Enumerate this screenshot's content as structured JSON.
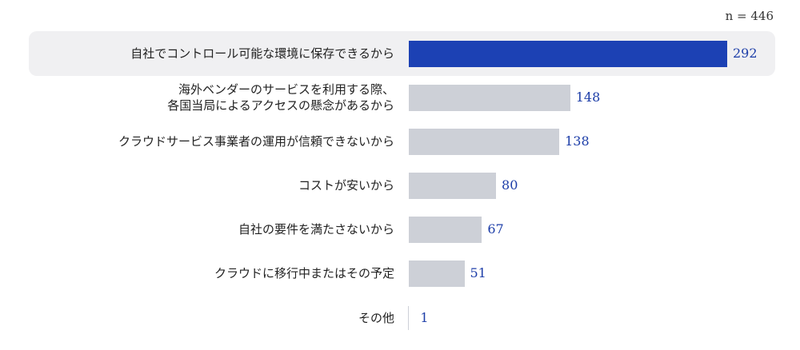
{
  "sample_note": "n = 446",
  "chart_data": {
    "type": "bar",
    "orientation": "horizontal",
    "categories": [
      "自社でコントロール可能な環境に保存できるから",
      "海外ベンダーのサービスを利用する際、\n各国当局によるアクセスの懸念があるから",
      "クラウドサービス事業者の運用が信頼できないから",
      "コストが安いから",
      "自社の要件を満たさないから",
      "クラウドに移行中またはその予定",
      "その他"
    ],
    "values": [
      292,
      148,
      138,
      80,
      67,
      51,
      1
    ],
    "value_labels": [
      "292",
      "148",
      "138",
      "80",
      "67",
      "51",
      "1"
    ],
    "highlight_index": 0,
    "xlim": [
      0,
      292
    ],
    "colors": {
      "highlight": "#1c41b4",
      "default": "#cdd0d7",
      "value_text": "#1c3da8",
      "highlight_bg": "#f0f0f2"
    },
    "grid": false,
    "legend": "none"
  }
}
